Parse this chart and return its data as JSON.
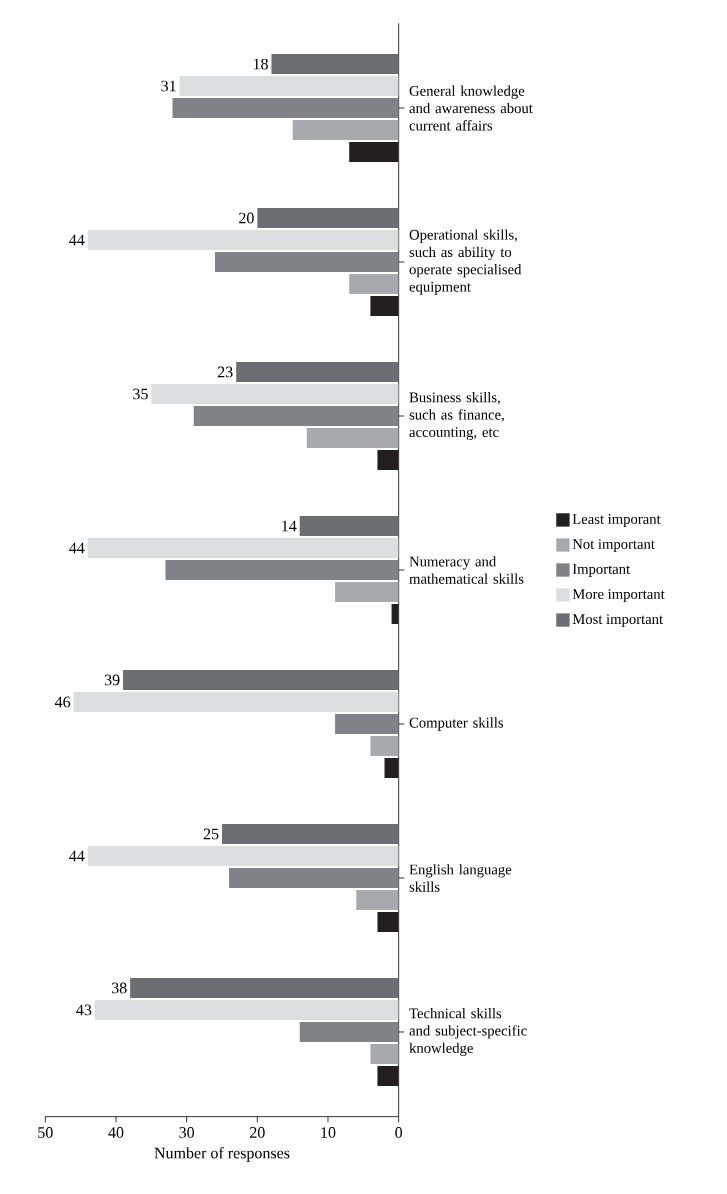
{
  "chart_data": {
    "type": "bar",
    "orientation": "horizontal",
    "xlabel": "Number of responses",
    "categories": [
      "General knowledge and awareness about current affairs",
      "Operational skills, such as ability to operate specialised equipment",
      "Business skills, such as finance, accounting, etc",
      "Numeracy and mathematical skills",
      "Computer skills",
      "English language skills",
      "Technical skills and subject-specific knowledge"
    ],
    "series": [
      {
        "name": "Least imporant",
        "color": "#231f20",
        "values": [
          7,
          4,
          3,
          1,
          2,
          3,
          3
        ]
      },
      {
        "name": "Not important",
        "color": "#a7a9ac",
        "values": [
          15,
          7,
          13,
          9,
          4,
          6,
          4
        ]
      },
      {
        "name": "Important",
        "color": "#808285",
        "values": [
          32,
          26,
          29,
          33,
          9,
          24,
          14
        ]
      },
      {
        "name": "More important",
        "color": "#dcdddf",
        "values": [
          31,
          44,
          35,
          44,
          46,
          44,
          43
        ],
        "value_labels": [
          "31",
          "44",
          "35",
          "44",
          "46",
          "44",
          "43"
        ]
      },
      {
        "name": "Most important",
        "color": "#6d6e71",
        "values": [
          18,
          20,
          23,
          14,
          39,
          25,
          38
        ],
        "value_labels": [
          "18",
          "20",
          "23",
          "14",
          "39",
          "25",
          "38"
        ]
      }
    ],
    "xlim": [
      50,
      0
    ],
    "xticks": [
      0,
      10,
      20,
      30,
      40,
      50
    ],
    "legend": "right",
    "grid": false
  }
}
